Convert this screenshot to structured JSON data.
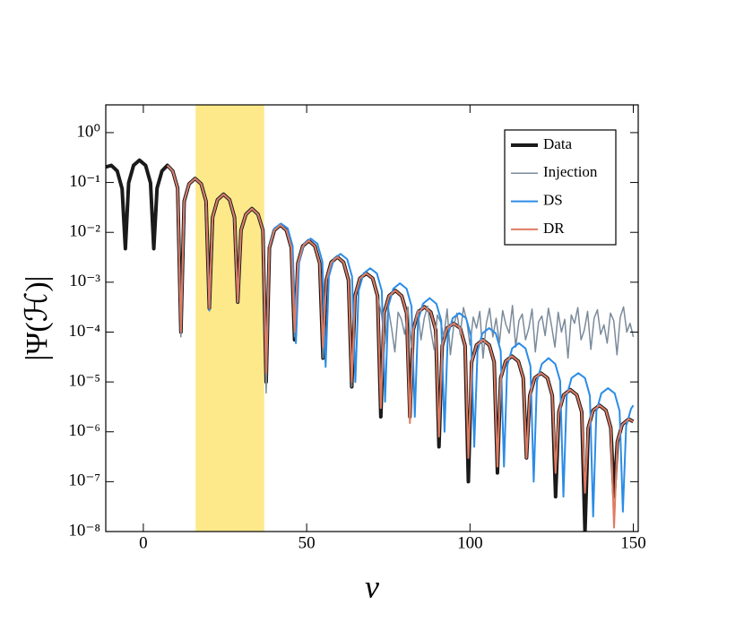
{
  "chart_data": {
    "type": "line",
    "x_label": "v",
    "y_label": "|Ψ(ℋ)|",
    "log_y": true,
    "legend": "upper right",
    "xlim": [
      -11.5,
      151.5
    ],
    "ylim": [
      1e-08,
      3.6
    ],
    "xticks": [
      0,
      50,
      100,
      150
    ],
    "yticks": [
      {
        "value": 1,
        "label": "10⁰"
      },
      {
        "value": 0.1,
        "label": "10⁻¹"
      },
      {
        "value": 0.01,
        "label": "10⁻²"
      },
      {
        "value": 0.001,
        "label": "10⁻³"
      },
      {
        "value": 0.0001,
        "label": "10⁻⁴"
      },
      {
        "value": 1e-05,
        "label": "10⁻⁵"
      },
      {
        "value": 1e-06,
        "label": "10⁻⁶"
      },
      {
        "value": 1e-07,
        "label": "10⁻⁷"
      },
      {
        "value": 1e-08,
        "label": "10⁻⁸"
      }
    ],
    "shaded_region": {
      "x": [
        16,
        37
      ],
      "color": "#fde98a"
    },
    "series": [
      {
        "name": "Data",
        "color": "#1a1a1a",
        "width": 4,
        "x": [
          -12,
          -9.8,
          -8,
          -6.5,
          -5.5,
          -4.5,
          -3,
          -1.2,
          0.7,
          2.2,
          3.2,
          4.2,
          5.7,
          7.35,
          9,
          10.5,
          11.5,
          12.5,
          14,
          15.85,
          17.7,
          19.2,
          20.2,
          21.2,
          22.7,
          24.55,
          26.4,
          27.9,
          28.9,
          29.9,
          31.4,
          33.25,
          35.1,
          36.6,
          37.6,
          38.6,
          40.1,
          41.95,
          43.8,
          45.3,
          46.3,
          47.3,
          48.8,
          50.65,
          52.5,
          54,
          55,
          56,
          57.5,
          59.4,
          61.3,
          62.8,
          63.8,
          64.8,
          66.3,
          68.25,
          70.2,
          71.7,
          72.7,
          73.7,
          75.2,
          77.15,
          79.1,
          80.6,
          81.6,
          82.6,
          84.1,
          86.05,
          88,
          89.5,
          90.5,
          91.5,
          93,
          95,
          97,
          98.5,
          99.5,
          100.5,
          102,
          103.95,
          105.9,
          107.4,
          108.4,
          109.4,
          110.9,
          112.85,
          114.8,
          116.3,
          117.3,
          118.3,
          119.8,
          121.75,
          123.7,
          125.2,
          126.2,
          127.2,
          128.7,
          130.7,
          132.7,
          134.2,
          135.2,
          136.2,
          137.7,
          139.65,
          141.6,
          143.1,
          144.1,
          145.1,
          146.6,
          148.6,
          150
        ],
        "values": [
          0.2,
          0.22,
          0.17,
          0.075,
          0.0047,
          0.098,
          0.22,
          0.28,
          0.22,
          0.098,
          0.0047,
          0.077,
          0.17,
          0.22,
          0.17,
          0.077,
          0.0001,
          0.042,
          0.094,
          0.12,
          0.094,
          0.042,
          0.0003,
          0.02,
          0.045,
          0.058,
          0.045,
          0.02,
          0.0004,
          0.011,
          0.023,
          0.03,
          0.023,
          0.011,
          1e-05,
          0.0049,
          0.011,
          0.014,
          0.011,
          0.0049,
          7e-05,
          0.0024,
          0.0053,
          0.0068,
          0.0053,
          0.0024,
          3e-05,
          0.0011,
          0.0025,
          0.0032,
          0.0025,
          0.0011,
          8e-06,
          0.00053,
          0.0012,
          0.0015,
          0.0012,
          0.00053,
          2e-06,
          0.00024,
          0.00053,
          0.00068,
          0.00053,
          0.00024,
          2e-06,
          0.00011,
          0.00025,
          0.00032,
          0.00025,
          0.00011,
          5e-07,
          5.3e-05,
          0.00012,
          0.00015,
          0.00012,
          5.3e-05,
          1e-07,
          2.5e-05,
          5.5e-05,
          7e-05,
          5.5e-05,
          2.5e-05,
          1.5e-07,
          1.2e-05,
          2.6e-05,
          3.3e-05,
          2.6e-05,
          1.2e-05,
          3e-07,
          5.3e-06,
          1.2e-05,
          1.5e-05,
          1.2e-05,
          5.3e-06,
          5e-08,
          2.5e-06,
          5.5e-06,
          7e-06,
          5.5e-06,
          2.5e-06,
          1e-08,
          1.2e-06,
          2.7e-06,
          3.4e-06,
          2.7e-06,
          1.2e-06,
          5e-08,
          6.3e-07,
          1.4e-06,
          1.8e-06,
          1.6e-06
        ]
      },
      {
        "name": "Injection",
        "color": "#7b8b9b",
        "width": 1.5,
        "x": [
          7.35,
          9,
          10.5,
          11.5,
          12.5,
          14,
          15.85,
          17.7,
          19.2,
          20.2,
          21.2,
          22.7,
          24.55,
          26.4,
          27.9,
          28.9,
          29.9,
          31.4,
          33.25,
          35.1,
          36.6,
          37.6,
          38.6,
          40.1,
          41.95,
          43.8,
          45.3,
          46.3,
          47.3,
          48.8,
          50.65,
          52.5,
          54,
          55,
          56,
          57.5,
          59.4,
          61.3,
          62.8,
          63.8,
          64.8,
          66.3,
          68.25,
          70.2,
          71.7,
          73,
          74,
          75,
          76,
          77,
          78,
          79,
          80,
          81,
          82,
          83,
          84,
          85,
          86,
          87,
          88,
          89,
          90,
          91,
          92,
          93,
          94,
          95,
          96,
          97,
          98,
          99,
          100,
          101,
          102,
          103,
          104,
          105,
          106,
          107,
          108,
          109,
          110,
          111,
          112,
          113,
          114,
          115,
          116,
          117,
          118,
          119,
          120,
          121,
          122,
          123,
          124,
          125,
          126,
          127,
          128,
          129,
          130,
          131,
          132,
          133,
          134,
          135,
          136,
          137,
          138,
          139,
          140,
          141,
          142,
          143,
          144,
          145,
          146,
          147,
          148,
          149,
          150
        ],
        "values": [
          0.22,
          0.17,
          0.077,
          8e-05,
          0.042,
          0.094,
          0.12,
          0.094,
          0.042,
          0.0003,
          0.02,
          0.045,
          0.058,
          0.045,
          0.02,
          0.0004,
          0.011,
          0.023,
          0.03,
          0.023,
          0.011,
          6e-06,
          0.0049,
          0.011,
          0.014,
          0.011,
          0.0049,
          8e-05,
          0.0024,
          0.0053,
          0.0068,
          0.0053,
          0.0024,
          3e-05,
          0.0011,
          0.0025,
          0.0032,
          0.0025,
          0.0011,
          8e-06,
          0.00053,
          0.0012,
          0.0015,
          0.0012,
          0.00053,
          0.00021,
          6e-05,
          0.0003,
          0.00012,
          4e-05,
          0.00025,
          0.00018,
          9e-05,
          0.00032,
          5e-05,
          0.00014,
          0.00028,
          7e-05,
          0.00019,
          0.00033,
          0.00011,
          4.5e-05,
          0.00022,
          0.00016,
          8e-05,
          0.00029,
          3.5e-05,
          0.00013,
          0.00024,
          9e-05,
          0.00031,
          0.00017,
          5.5e-05,
          0.0002,
          0.00012,
          0.00026,
          3e-05,
          0.00015,
          0.0003,
          8e-05,
          0.00019,
          6e-05,
          0.00027,
          0.00014,
          9.5e-05,
          0.00034,
          5e-05,
          0.00017,
          0.00023,
          7e-05,
          0.00012,
          0.00029,
          4e-05,
          0.00016,
          0.00021,
          8.5e-05,
          0.0003,
          0.00013,
          5e-05,
          0.00025,
          0.0001,
          0.00018,
          3e-05,
          0.00022,
          0.00015,
          0.00031,
          7e-05,
          0.00011,
          0.00026,
          4.5e-05,
          0.00019,
          0.00028,
          9e-05,
          0.00014,
          6e-05,
          0.00024,
          0.00017,
          3.5e-05,
          0.0002,
          0.00032,
          0.0001,
          0.00015,
          8e-05
        ]
      },
      {
        "name": "DS",
        "color": "#2b8ce6",
        "width": 2,
        "x": [
          7.35,
          9,
          10.5,
          11.5,
          12.5,
          14,
          15.85,
          17.7,
          19.2,
          20.2,
          21.2,
          22.7,
          24.55,
          26.4,
          27.9,
          28.9,
          29.9,
          31.4,
          33.25,
          35.1,
          36.6,
          37.6,
          38.6,
          40.1,
          42.15,
          44.2,
          45.7,
          46.7,
          47.7,
          49.2,
          51.25,
          53.3,
          54.8,
          55.8,
          56.8,
          58.3,
          60.35,
          62.4,
          63.9,
          64.9,
          65.9,
          67.4,
          69.45,
          71.5,
          73,
          74,
          75,
          76.5,
          78.55,
          80.6,
          82.1,
          83.1,
          84.1,
          85.6,
          87.65,
          89.7,
          91.2,
          92.2,
          93.2,
          94.7,
          96.75,
          98.8,
          100.3,
          101.3,
          102.3,
          103.8,
          105.85,
          107.9,
          109.4,
          110.4,
          111.4,
          112.9,
          114.95,
          117,
          118.5,
          119.5,
          120.5,
          122,
          124.05,
          126.1,
          127.6,
          128.6,
          129.6,
          131.1,
          133.15,
          135.2,
          136.7,
          137.7,
          138.7,
          140.2,
          142.25,
          144.3,
          145.8,
          146.8,
          147.8,
          149.3,
          150
        ],
        "values": [
          0.22,
          0.17,
          0.077,
          0.0001,
          0.042,
          0.094,
          0.12,
          0.094,
          0.042,
          0.00027,
          0.02,
          0.045,
          0.058,
          0.045,
          0.02,
          0.0004,
          0.011,
          0.023,
          0.03,
          0.023,
          0.011,
          2e-05,
          0.0053,
          0.012,
          0.015,
          0.012,
          0.0053,
          6e-05,
          0.0026,
          0.0059,
          0.0075,
          0.0059,
          0.0026,
          2e-05,
          0.0013,
          0.0029,
          0.0037,
          0.0029,
          0.0013,
          1e-05,
          0.00067,
          0.0015,
          0.0019,
          0.0015,
          0.00067,
          4e-06,
          0.00033,
          0.00074,
          0.00095,
          0.00074,
          0.00033,
          2e-06,
          0.00017,
          0.00037,
          0.00048,
          0.00037,
          0.00017,
          1e-06,
          8.4e-05,
          0.00019,
          0.00024,
          0.00019,
          8.4e-05,
          5e-07,
          4.2e-05,
          9.4e-05,
          0.00012,
          9.4e-05,
          4.2e-05,
          2e-07,
          2.1e-05,
          4.7e-05,
          6e-05,
          4.7e-05,
          2.1e-05,
          1e-07,
          1.05e-05,
          2.3e-05,
          3e-05,
          2.3e-05,
          1.05e-05,
          5e-08,
          5.3e-06,
          1.2e-05,
          1.5e-05,
          1.2e-05,
          5.3e-06,
          2e-08,
          2.6e-06,
          5.9e-06,
          7.5e-06,
          5.9e-06,
          2.6e-06,
          2.5e-08,
          1.3e-06,
          2.9e-06,
          3.4e-06
        ]
      },
      {
        "name": "DR",
        "color": "#e07b62",
        "width": 2,
        "x": [
          7.35,
          9,
          10.5,
          11.5,
          12.5,
          14,
          15.85,
          17.7,
          19.2,
          20.2,
          21.2,
          22.7,
          24.55,
          26.4,
          27.9,
          28.9,
          29.9,
          31.4,
          33.25,
          35.1,
          36.6,
          37.6,
          38.6,
          40.1,
          41.95,
          43.8,
          45.3,
          46.3,
          47.3,
          48.8,
          50.65,
          52.5,
          54,
          55,
          56,
          57.5,
          59.4,
          61.3,
          62.8,
          63.8,
          64.8,
          66.3,
          68.25,
          70.2,
          71.7,
          72.7,
          73.7,
          75.2,
          77.15,
          79.1,
          80.6,
          81.6,
          82.6,
          84.1,
          86.05,
          88,
          89.5,
          90.5,
          91.5,
          93,
          95,
          97,
          98.5,
          99.5,
          100.5,
          102,
          103.95,
          105.9,
          107.4,
          108.4,
          109.4,
          110.9,
          112.85,
          114.8,
          116.3,
          117.3,
          118.3,
          119.8,
          121.75,
          123.7,
          125.2,
          126.2,
          127.2,
          128.7,
          130.7,
          132.7,
          134.2,
          135.2,
          136.2,
          137.7,
          139.65,
          141.6,
          143.1,
          144.1,
          145.1,
          146.6,
          148.6,
          150
        ],
        "values": [
          0.22,
          0.17,
          0.077,
          0.0001,
          0.042,
          0.094,
          0.12,
          0.094,
          0.042,
          0.0003,
          0.02,
          0.045,
          0.058,
          0.045,
          0.02,
          0.0004,
          0.011,
          0.023,
          0.03,
          0.023,
          0.011,
          1.5e-05,
          0.0049,
          0.011,
          0.014,
          0.011,
          0.0049,
          0.0001,
          0.0024,
          0.0053,
          0.0068,
          0.0053,
          0.0024,
          5e-05,
          0.0011,
          0.0025,
          0.0032,
          0.0025,
          0.0011,
          1e-05,
          0.00053,
          0.0012,
          0.0015,
          0.0012,
          0.00053,
          3e-06,
          0.00024,
          0.00053,
          0.00068,
          0.00053,
          0.00024,
          1.5e-06,
          0.00011,
          0.00025,
          0.00032,
          0.00025,
          0.00011,
          8e-07,
          5.3e-05,
          0.00012,
          0.00015,
          0.00012,
          5.3e-05,
          3e-07,
          2.5e-05,
          5.5e-05,
          7e-05,
          5.5e-05,
          2.5e-05,
          2e-07,
          1.2e-05,
          2.6e-05,
          3.3e-05,
          2.6e-05,
          1.2e-05,
          3e-07,
          5.3e-06,
          1.2e-05,
          1.5e-05,
          1.2e-05,
          5.3e-06,
          1.5e-07,
          2.5e-06,
          5.5e-06,
          7e-06,
          5.5e-06,
          2.5e-06,
          6e-08,
          1.2e-06,
          2.7e-06,
          3.4e-06,
          2.7e-06,
          1.2e-06,
          1.2e-08,
          6.3e-07,
          1.4e-06,
          1.8e-06,
          1.6e-06
        ]
      }
    ]
  }
}
